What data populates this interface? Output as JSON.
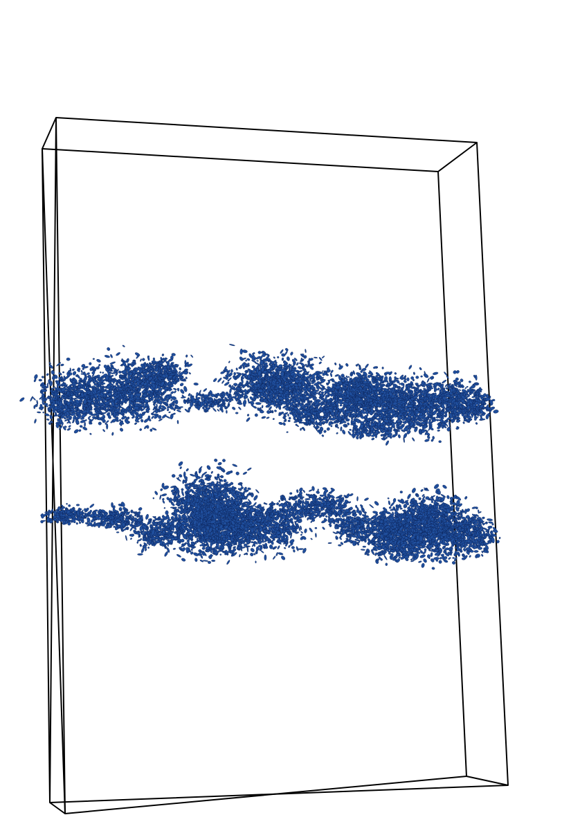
{
  "scene": {
    "kind": "3d-volume-render",
    "background_color": "#ffffff",
    "box_edge_color": "#000000",
    "structure_color": "#1f4e9c",
    "structure_edge_color": "#0b2257",
    "features": [
      {
        "name": "upper-band",
        "description_hidden": true
      },
      {
        "name": "lower-band",
        "description_hidden": true
      }
    ]
  }
}
